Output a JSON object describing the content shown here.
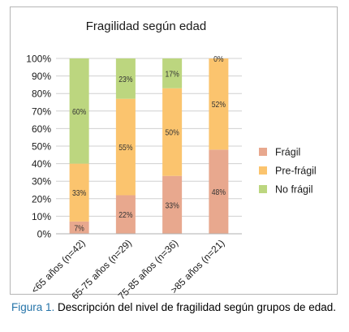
{
  "chart_data": {
    "type": "bar",
    "stacked": true,
    "percent": true,
    "title": "Fragilidad según edad",
    "categories": [
      "<65 años (n=42)",
      "65-75 años (n=29)",
      "75-85 años (n=36)",
      ">85 años (n=21)"
    ],
    "series": [
      {
        "name": "Frágil",
        "color": "#e8a88e",
        "values": [
          7,
          22,
          33,
          48
        ],
        "labels": [
          "7%",
          "22%",
          "33%",
          "48%"
        ]
      },
      {
        "name": "Pre-frágil",
        "color": "#fbc46e",
        "values": [
          33,
          55,
          50,
          52
        ],
        "labels": [
          "33%",
          "55%",
          "50%",
          "52%"
        ]
      },
      {
        "name": "No frágil",
        "color": "#bcd67f",
        "values": [
          60,
          23,
          17,
          0
        ],
        "labels": [
          "60%",
          "23%",
          "17%",
          "0%"
        ]
      }
    ],
    "ylim": [
      0,
      100
    ],
    "yticks": [
      "0%",
      "10%",
      "20%",
      "30%",
      "40%",
      "50%",
      "60%",
      "70%",
      "80%",
      "90%",
      "100%"
    ],
    "grid": true,
    "legend_position": "right"
  },
  "caption": {
    "label": "Figura 1.",
    "text": " Descripción del nivel de fragilidad según grupos de edad."
  }
}
